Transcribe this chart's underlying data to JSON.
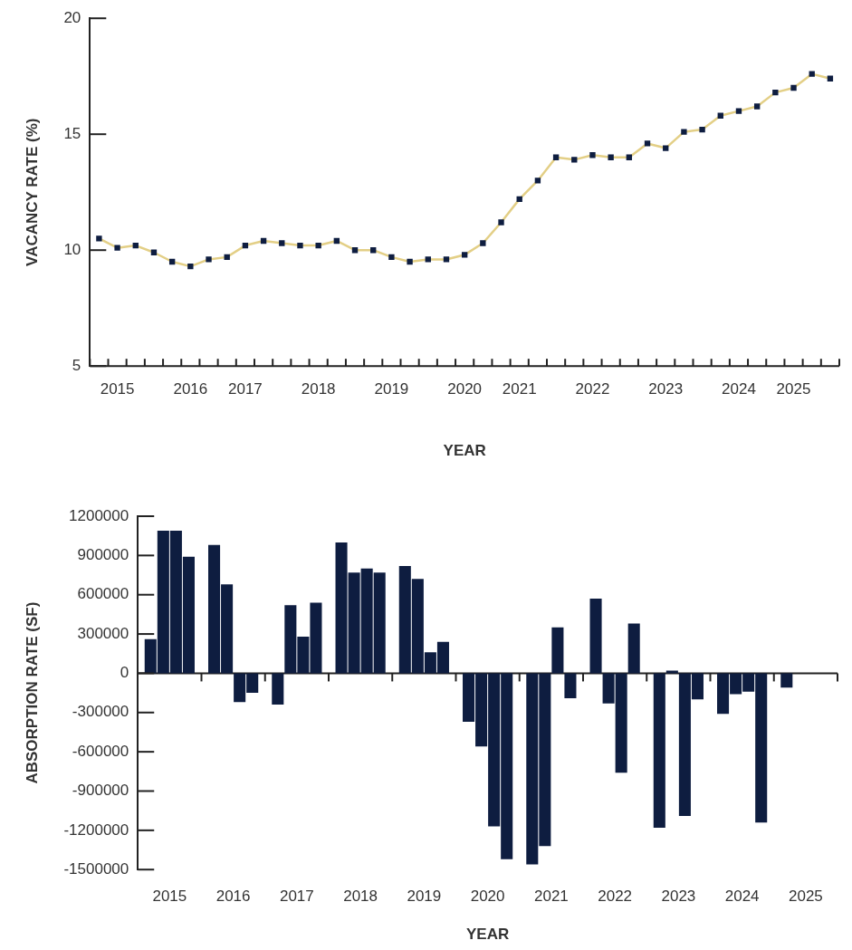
{
  "chart_data": [
    {
      "type": "line",
      "xlabel": "YEAR",
      "ylabel": "VACANCY RATE (%)",
      "categories": [
        null,
        "2015",
        null,
        null,
        null,
        "2016",
        null,
        null,
        "2017",
        null,
        null,
        null,
        "2018",
        null,
        null,
        null,
        "2019",
        null,
        null,
        null,
        "2020",
        null,
        null,
        "2021",
        null,
        null,
        null,
        "2022",
        null,
        null,
        null,
        "2023",
        null,
        null,
        null,
        "2024",
        null,
        null,
        "2025",
        null,
        null
      ],
      "series": [
        {
          "color": "#e3cf86",
          "values": [
            10.5,
            10.1,
            10.2,
            9.9,
            9.5,
            9.3,
            9.6,
            9.7,
            10.2,
            10.4,
            10.3,
            10.2,
            10.2,
            10.4,
            10.0,
            10.0,
            9.7,
            9.5,
            9.6,
            9.6,
            9.8,
            10.3,
            11.2,
            12.2,
            13.0,
            14.0,
            13.9,
            14.1,
            14.0,
            14.0,
            14.6,
            14.4,
            15.1,
            15.2,
            15.8,
            16.0,
            16.2,
            16.8,
            17.0,
            17.6,
            17.4
          ]
        }
      ],
      "marker": "square",
      "ylim": [
        5,
        20
      ],
      "yticks": [
        5,
        10,
        15,
        20
      ]
    },
    {
      "type": "bar",
      "xlabel": "YEAR",
      "ylabel": "ABSORPTION RATE (SF)",
      "x": [
        2015.2,
        2015.4,
        2015.6,
        2015.8,
        2016.2,
        2016.4,
        2016.6,
        2016.8,
        2017.2,
        2017.4,
        2017.6,
        2017.8,
        2018.2,
        2018.4,
        2018.6,
        2018.8,
        2019.2,
        2019.4,
        2019.6,
        2019.8,
        2020.2,
        2020.4,
        2020.6,
        2020.8,
        2021.2,
        2021.4,
        2021.6,
        2021.8,
        2022.2,
        2022.4,
        2022.6,
        2022.8,
        2023.2,
        2023.4,
        2023.6,
        2023.8,
        2024.2,
        2024.4,
        2024.6,
        2024.8,
        2025.2
      ],
      "series": [
        {
          "color": "#0e1d40",
          "values": [
            260000,
            1090000,
            1090000,
            890000,
            980000,
            680000,
            -220000,
            -150000,
            -240000,
            520000,
            280000,
            540000,
            1000000,
            770000,
            800000,
            770000,
            820000,
            720000,
            160000,
            240000,
            -370000,
            -560000,
            -1170000,
            -1420000,
            -1460000,
            -1320000,
            350000,
            -190000,
            570000,
            -230000,
            -760000,
            380000,
            -1180000,
            20000,
            -1090000,
            -200000,
            -310000,
            -160000,
            -140000,
            -1140000,
            -110000
          ]
        }
      ],
      "xlim": [
        2015,
        2026
      ],
      "xticks": [
        {
          "value": 2015.5,
          "label": "2015"
        },
        {
          "value": 2016,
          "label": null
        },
        {
          "value": 2016.5,
          "label": "2016"
        },
        {
          "value": 2017,
          "label": null
        },
        {
          "value": 2017.5,
          "label": "2017"
        },
        {
          "value": 2018,
          "label": null
        },
        {
          "value": 2018.5,
          "label": "2018"
        },
        {
          "value": 2019,
          "label": null
        },
        {
          "value": 2019.5,
          "label": "2019"
        },
        {
          "value": 2020,
          "label": null
        },
        {
          "value": 2020.5,
          "label": "2020"
        },
        {
          "value": 2021,
          "label": null
        },
        {
          "value": 2021.5,
          "label": "2021"
        },
        {
          "value": 2022,
          "label": null
        },
        {
          "value": 2022.5,
          "label": "2022"
        },
        {
          "value": 2023,
          "label": null
        },
        {
          "value": 2023.5,
          "label": "2023"
        },
        {
          "value": 2024,
          "label": null
        },
        {
          "value": 2024.5,
          "label": "2024"
        },
        {
          "value": 2025,
          "label": null
        },
        {
          "value": 2025.5,
          "label": "2025"
        },
        {
          "value": 2026,
          "label": null
        }
      ],
      "ylim": [
        -1500000,
        1200000
      ],
      "yticks": [
        -1500000,
        -1200000,
        -900000,
        -600000,
        -300000,
        0,
        300000,
        600000,
        900000,
        1200000
      ]
    }
  ]
}
